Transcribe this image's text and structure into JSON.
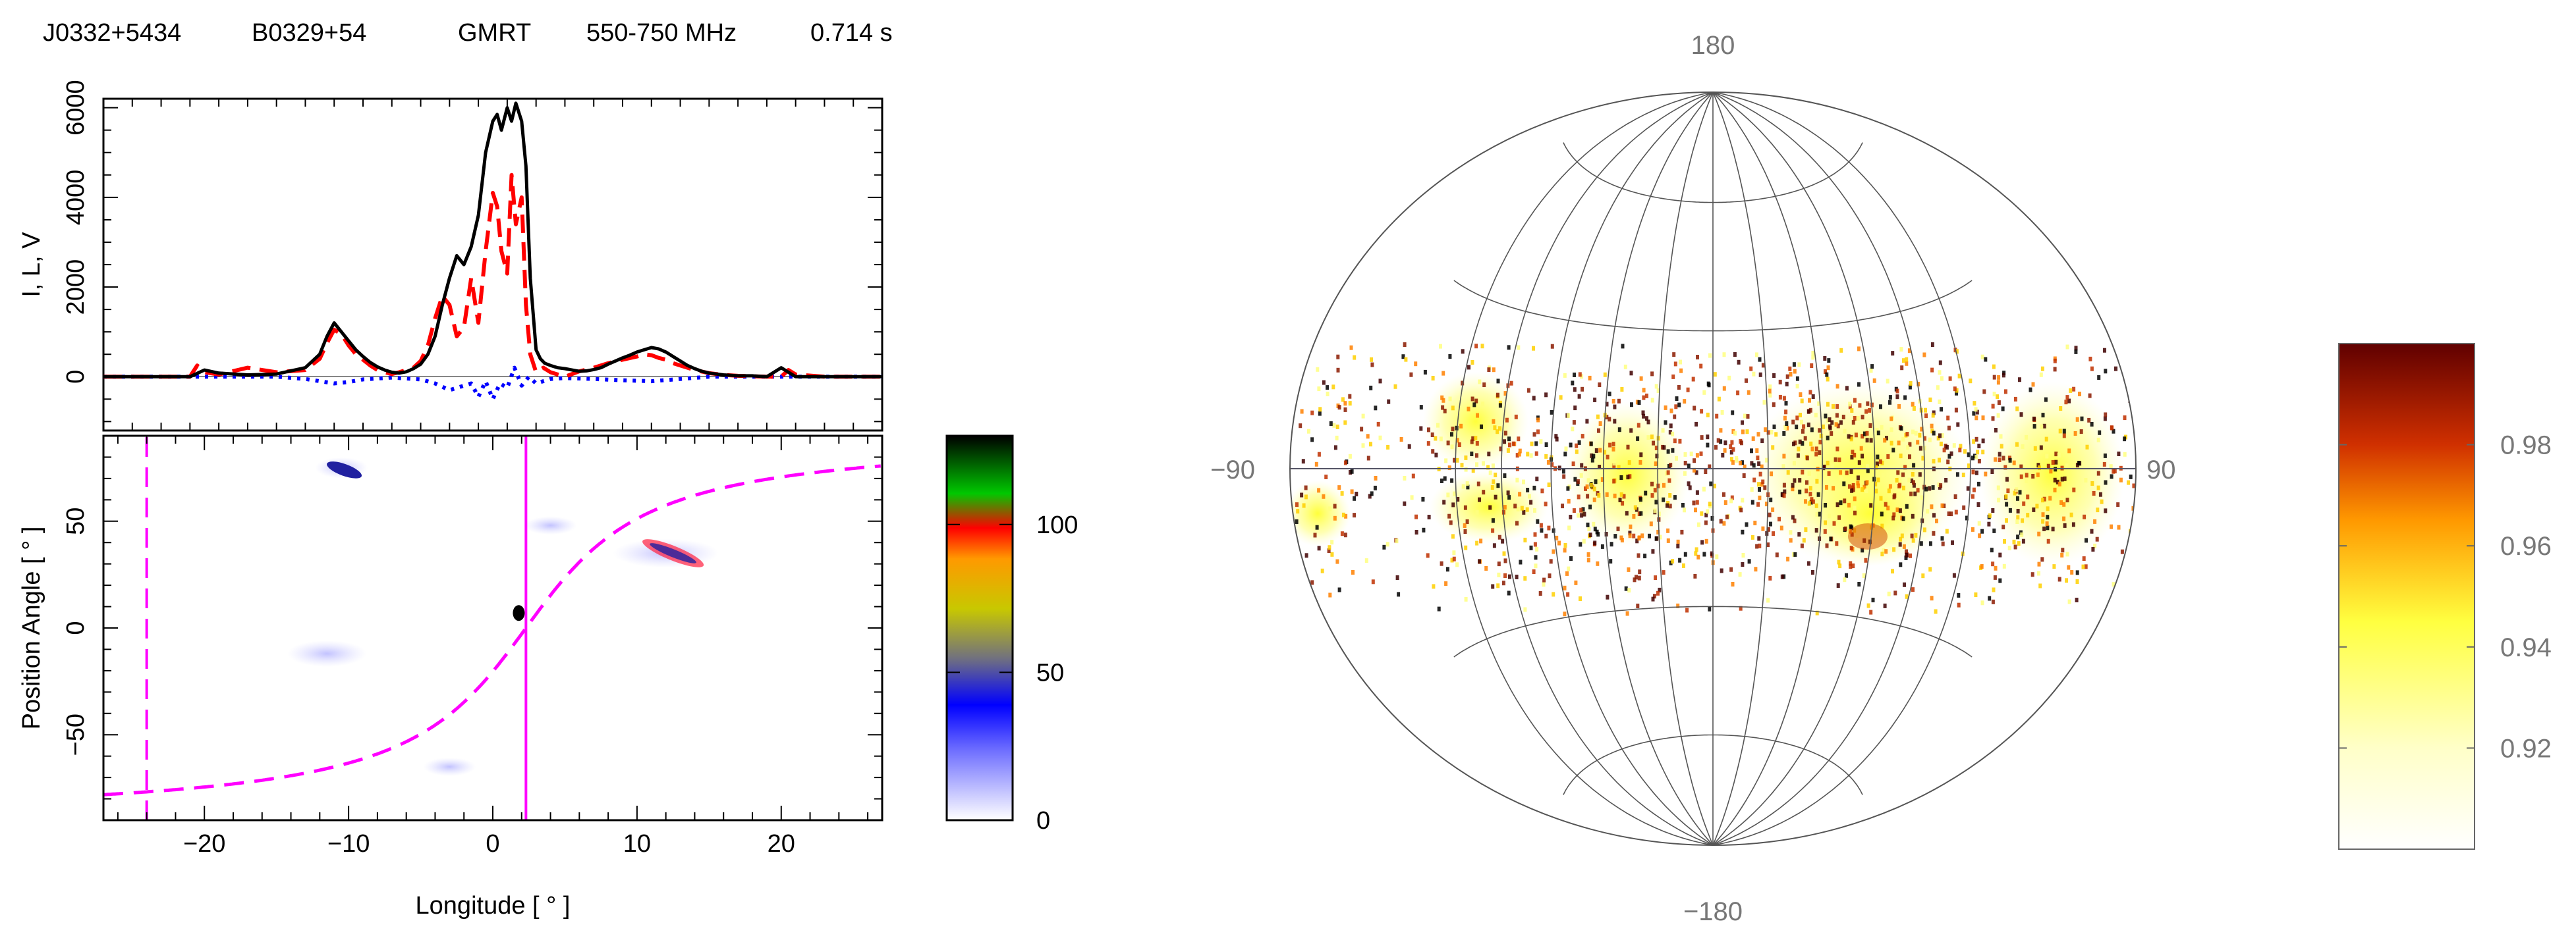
{
  "header": {
    "jname": "J0332+5434",
    "bname": "B0329+54",
    "telescope": "GMRT",
    "band": "550-750 MHz",
    "period": "0.714 s"
  },
  "chart_data": [
    {
      "type": "line",
      "panel": "profile",
      "ylabel": "I, L, V",
      "xlim": [
        -27,
        27
      ],
      "ylim": [
        -1200,
        6200
      ],
      "yticks": [
        0,
        2000,
        4000,
        6000
      ],
      "series": [
        {
          "key": "I",
          "color": "#000000",
          "style": "solid",
          "x": [
            -27,
            -21,
            -20,
            -19,
            -17,
            -15,
            -13,
            -12,
            -11.5,
            -11,
            -10.5,
            -10,
            -9.5,
            -9,
            -8.5,
            -8,
            -7.5,
            -7,
            -6.5,
            -6,
            -5.5,
            -5,
            -4.5,
            -4,
            -3.5,
            -3,
            -2.5,
            -2,
            -1.5,
            -1,
            -0.5,
            0,
            0.3,
            0.6,
            1,
            1.3,
            1.6,
            2,
            2.3,
            2.6,
            3,
            3.3,
            3.6,
            4,
            4.5,
            5,
            5.5,
            6,
            6.5,
            7,
            7.5,
            8,
            8.5,
            9,
            9.5,
            10,
            10.5,
            11,
            11.5,
            12,
            12.5,
            13,
            13.5,
            14,
            14.5,
            15,
            16,
            17,
            18,
            19,
            20,
            20.5,
            21,
            23,
            27
          ],
          "y": [
            0,
            0,
            150,
            80,
            40,
            60,
            200,
            500,
            900,
            1200,
            1000,
            800,
            600,
            450,
            320,
            220,
            150,
            100,
            80,
            110,
            180,
            280,
            500,
            900,
            1600,
            2200,
            2700,
            2500,
            2900,
            3600,
            5000,
            5700,
            5850,
            5500,
            6000,
            5700,
            6100,
            5700,
            4700,
            2200,
            600,
            400,
            300,
            250,
            200,
            180,
            150,
            120,
            130,
            160,
            200,
            280,
            350,
            420,
            480,
            550,
            600,
            650,
            620,
            550,
            450,
            350,
            250,
            180,
            120,
            80,
            40,
            20,
            20,
            0,
            200,
            100,
            0,
            0,
            0
          ]
        },
        {
          "key": "L",
          "color": "#ff0000",
          "style": "dashed",
          "x": [
            -27,
            -21,
            -20.5,
            -20,
            -19,
            -17,
            -15,
            -13,
            -12,
            -11.5,
            -11,
            -10.5,
            -10,
            -9.5,
            -9,
            -8.5,
            -8,
            -7.5,
            -7,
            -6.5,
            -6,
            -5.5,
            -5,
            -4.5,
            -4,
            -3.5,
            -3,
            -2.5,
            -2,
            -1.5,
            -1,
            -0.5,
            0,
            0.3,
            0.6,
            1,
            1.3,
            1.6,
            2,
            2.3,
            2.6,
            3,
            3.5,
            4,
            4.5,
            5,
            6,
            7,
            8,
            9,
            10,
            10.5,
            11,
            11.5,
            12,
            12.5,
            13,
            14,
            15,
            16,
            17,
            18,
            19,
            20,
            20.5,
            21,
            23,
            27
          ],
          "y": [
            0,
            0,
            250,
            100,
            50,
            200,
            100,
            150,
            400,
            750,
            1050,
            950,
            700,
            500,
            380,
            250,
            150,
            100,
            60,
            100,
            150,
            200,
            350,
            700,
            1300,
            1800,
            1600,
            900,
            1100,
            2200,
            1200,
            2800,
            4100,
            3800,
            2800,
            2300,
            4500,
            3400,
            4000,
            1600,
            500,
            100,
            200,
            100,
            50,
            0,
            120,
            200,
            300,
            380,
            450,
            500,
            480,
            420,
            380,
            300,
            250,
            150,
            80,
            40,
            20,
            10,
            0,
            0,
            150,
            50,
            0,
            0
          ]
        },
        {
          "key": "V",
          "color": "#0000ff",
          "style": "dotted",
          "x": [
            -27,
            -15,
            -13,
            -12,
            -11,
            -10,
            -9,
            -7,
            -5,
            -4,
            -3,
            -2,
            -1.5,
            -1,
            -0.5,
            0,
            0.5,
            1,
            1.5,
            2,
            2.5,
            3,
            4,
            5,
            7,
            9,
            11,
            13,
            15,
            27
          ],
          "y": [
            0,
            0,
            -50,
            -100,
            -150,
            -120,
            -60,
            -20,
            -60,
            -150,
            -300,
            -200,
            -150,
            -450,
            -100,
            -500,
            -150,
            -250,
            200,
            -200,
            0,
            -150,
            -50,
            -30,
            -50,
            -80,
            -100,
            -50,
            0,
            0
          ]
        }
      ]
    },
    {
      "type": "scatter",
      "panel": "position-angle",
      "xlabel": "Longitude [ ° ]",
      "ylabel": "Position Angle [ ° ]",
      "xlim": [
        -27,
        27
      ],
      "ylim": [
        -90,
        90
      ],
      "xticks": [
        -20,
        -10,
        0,
        10,
        20
      ],
      "yticks": [
        -50,
        0,
        50
      ],
      "colorbar": {
        "ticks": [
          0,
          50,
          100
        ],
        "max": 130
      }
    },
    {
      "type": "heatmap",
      "panel": "hammer-aitoff",
      "labels": {
        "top": "180",
        "bottom": "−180",
        "left": "−90",
        "right": "90"
      },
      "colorbar": {
        "ticks": [
          "0.92",
          "0.94",
          "0.96",
          "0.98"
        ],
        "range": [
          0.9,
          1.0
        ]
      }
    }
  ]
}
